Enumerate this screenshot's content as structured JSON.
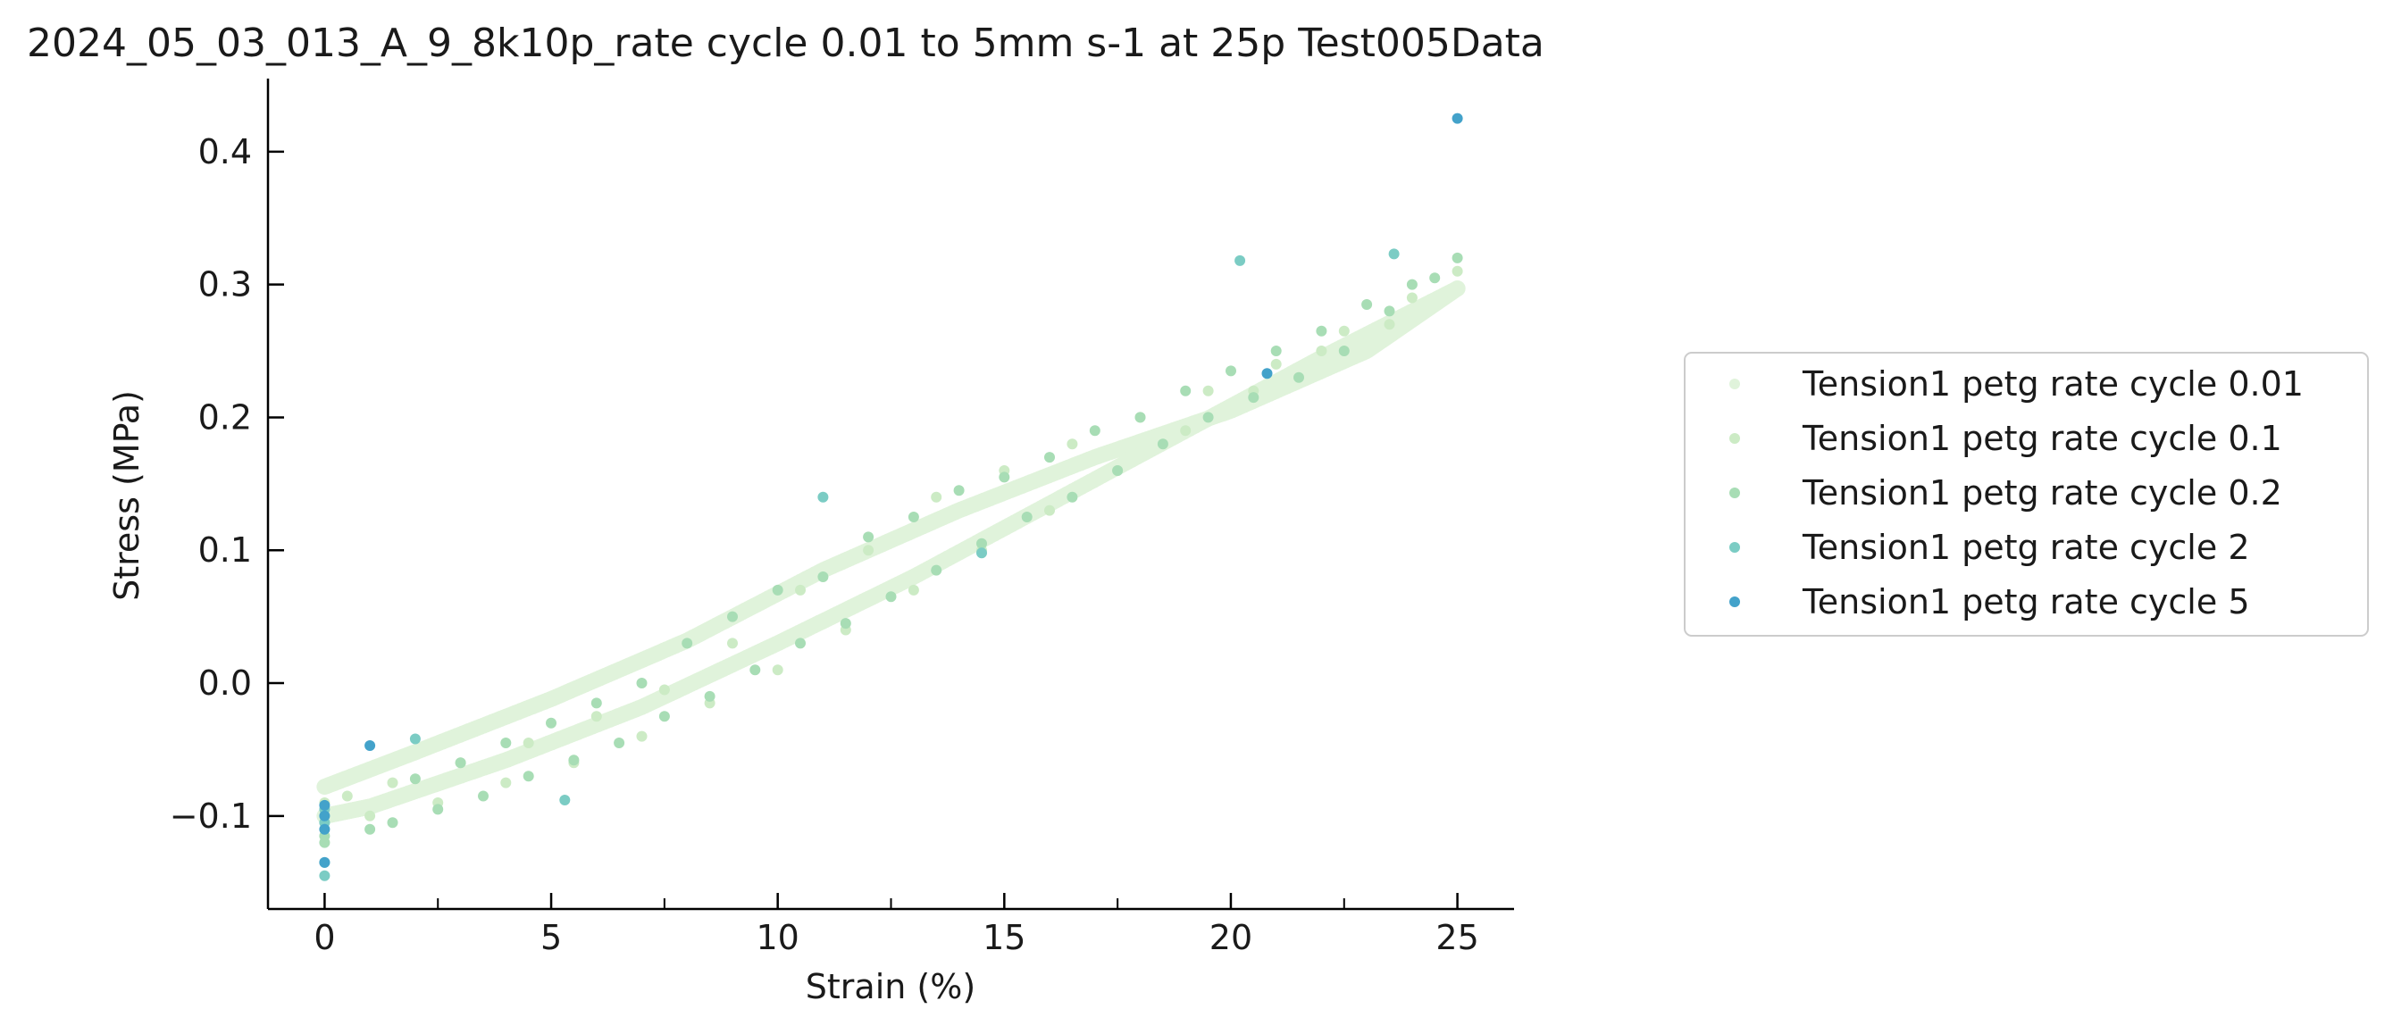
{
  "chart_data": {
    "type": "scatter",
    "title": "2024_05_03_013_A_9_8k10p_rate cycle 0.01 to 5mm s-1 at 25p Test005Data",
    "xlabel": "Strain (%)",
    "ylabel": "Stress (MPa)",
    "xlim": [
      -1.25,
      26.25
    ],
    "ylim": [
      -0.17,
      0.455
    ],
    "x_ticks": [
      0,
      5,
      10,
      15,
      20,
      25
    ],
    "x_tick_labels": [
      "0",
      "5",
      "10",
      "15",
      "20",
      "25"
    ],
    "x_minor_ticks": [
      2.5,
      7.5,
      12.5,
      17.5,
      22.5
    ],
    "y_ticks": [
      -0.1,
      0.0,
      0.1,
      0.2,
      0.3,
      0.4
    ],
    "y_tick_labels": [
      "−0.1",
      "0.0",
      "0.1",
      "0.2",
      "0.3",
      "0.4"
    ],
    "grid": false,
    "legend_position": "right",
    "series": [
      {
        "name": "Tension1 petg rate cycle 0.01",
        "color": "#e0f3db",
        "dense": true,
        "loading": [
          [
            0,
            -0.078
          ],
          [
            2,
            -0.052
          ],
          [
            5,
            -0.012
          ],
          [
            8,
            0.032
          ],
          [
            11,
            0.085
          ],
          [
            14,
            0.13
          ],
          [
            17,
            0.17
          ],
          [
            20,
            0.205
          ],
          [
            23,
            0.25
          ],
          [
            25,
            0.297
          ]
        ],
        "unloading": [
          [
            25,
            0.297
          ],
          [
            22,
            0.245
          ],
          [
            19,
            0.19
          ],
          [
            16,
            0.135
          ],
          [
            13,
            0.08
          ],
          [
            10,
            0.03
          ],
          [
            7,
            -0.018
          ],
          [
            4,
            -0.058
          ],
          [
            1,
            -0.093
          ],
          [
            0,
            -0.1
          ]
        ]
      },
      {
        "name": "Tension1 petg rate cycle 0.1",
        "color": "#ccebc5",
        "points": [
          [
            0,
            -0.09
          ],
          [
            0.5,
            -0.085
          ],
          [
            1.5,
            -0.075
          ],
          [
            3,
            -0.06
          ],
          [
            4.5,
            -0.045
          ],
          [
            6,
            -0.025
          ],
          [
            7.5,
            -0.005
          ],
          [
            9,
            0.03
          ],
          [
            10.5,
            0.07
          ],
          [
            12,
            0.1
          ],
          [
            13.5,
            0.14
          ],
          [
            15,
            0.16
          ],
          [
            16.5,
            0.18
          ],
          [
            18,
            0.2
          ],
          [
            19.5,
            0.22
          ],
          [
            21,
            0.24
          ],
          [
            22.5,
            0.265
          ],
          [
            24,
            0.29
          ],
          [
            25,
            0.31
          ],
          [
            23.5,
            0.27
          ],
          [
            22,
            0.25
          ],
          [
            20.5,
            0.22
          ],
          [
            19,
            0.19
          ],
          [
            17.5,
            0.16
          ],
          [
            16,
            0.13
          ],
          [
            14.5,
            0.1
          ],
          [
            13,
            0.07
          ],
          [
            11.5,
            0.04
          ],
          [
            10,
            0.01
          ],
          [
            8.5,
            -0.015
          ],
          [
            7,
            -0.04
          ],
          [
            5.5,
            -0.06
          ],
          [
            4,
            -0.075
          ],
          [
            2.5,
            -0.09
          ],
          [
            1,
            -0.1
          ],
          [
            0,
            -0.105
          ]
        ]
      },
      {
        "name": "Tension1 petg rate cycle 0.2",
        "color": "#a8ddb5",
        "points": [
          [
            0,
            -0.12
          ],
          [
            1,
            -0.11
          ],
          [
            2,
            -0.072
          ],
          [
            3,
            -0.06
          ],
          [
            4,
            -0.045
          ],
          [
            5,
            -0.03
          ],
          [
            6,
            -0.015
          ],
          [
            7,
            0.0
          ],
          [
            8,
            0.03
          ],
          [
            9,
            0.05
          ],
          [
            10,
            0.07
          ],
          [
            11,
            0.08
          ],
          [
            12,
            0.11
          ],
          [
            13,
            0.125
          ],
          [
            14,
            0.145
          ],
          [
            15,
            0.155
          ],
          [
            16,
            0.17
          ],
          [
            17,
            0.19
          ],
          [
            18,
            0.2
          ],
          [
            19,
            0.22
          ],
          [
            20,
            0.235
          ],
          [
            21,
            0.25
          ],
          [
            22,
            0.265
          ],
          [
            23,
            0.285
          ],
          [
            24,
            0.3
          ],
          [
            25,
            0.32
          ],
          [
            24.5,
            0.305
          ],
          [
            23.5,
            0.28
          ],
          [
            22.5,
            0.25
          ],
          [
            21.5,
            0.23
          ],
          [
            20.5,
            0.215
          ],
          [
            19.5,
            0.2
          ],
          [
            18.5,
            0.18
          ],
          [
            17.5,
            0.16
          ],
          [
            16.5,
            0.14
          ],
          [
            15.5,
            0.125
          ],
          [
            14.5,
            0.105
          ],
          [
            13.5,
            0.085
          ],
          [
            12.5,
            0.065
          ],
          [
            11.5,
            0.045
          ],
          [
            10.5,
            0.03
          ],
          [
            9.5,
            0.01
          ],
          [
            8.5,
            -0.01
          ],
          [
            7.5,
            -0.025
          ],
          [
            6.5,
            -0.045
          ],
          [
            5.5,
            -0.058
          ],
          [
            4.5,
            -0.07
          ],
          [
            3.5,
            -0.085
          ],
          [
            2.5,
            -0.095
          ],
          [
            1.5,
            -0.105
          ],
          [
            0,
            -0.115
          ]
        ]
      },
      {
        "name": "Tension1 petg rate cycle 2",
        "color": "#7bccc4",
        "points": [
          [
            0,
            -0.145
          ],
          [
            0,
            -0.135
          ],
          [
            0,
            -0.105
          ],
          [
            0,
            -0.095
          ],
          [
            2,
            -0.042
          ],
          [
            5.3,
            -0.088
          ],
          [
            11,
            0.14
          ],
          [
            14.5,
            0.098
          ],
          [
            20.2,
            0.318
          ],
          [
            23.6,
            0.323
          ]
        ]
      },
      {
        "name": "Tension1 petg rate cycle 5",
        "color": "#43a2ca",
        "points": [
          [
            0,
            -0.135
          ],
          [
            0,
            -0.11
          ],
          [
            0,
            -0.1
          ],
          [
            0,
            -0.092
          ],
          [
            1,
            -0.047
          ],
          [
            20.8,
            0.233
          ],
          [
            25,
            0.425
          ]
        ]
      }
    ]
  }
}
